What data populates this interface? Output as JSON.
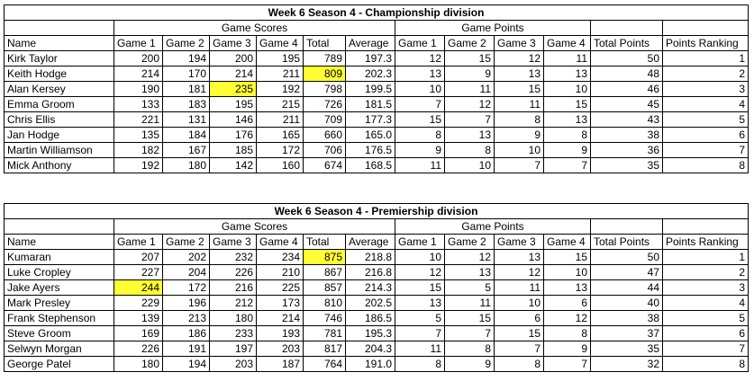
{
  "tables": [
    {
      "title": "Week 6 Season 4 - Championship division",
      "group_headers": {
        "game_scores": "Game Scores",
        "game_points": "Game Points"
      },
      "columns": [
        "Name",
        "Game 1",
        "Game 2",
        "Game 3",
        "Game 4",
        "Total",
        "Average",
        "Game 1",
        "Game 2",
        "Game 3",
        "Game 4",
        "Total Points",
        "Points Ranking"
      ],
      "rows": [
        [
          "Kirk Taylor",
          "200",
          "194",
          "200",
          "195",
          "789",
          "197.3",
          "12",
          "15",
          "12",
          "11",
          "50",
          "1"
        ],
        [
          "Keith Hodge",
          "214",
          "170",
          "214",
          "211",
          "809",
          "202.3",
          "13",
          "9",
          "13",
          "13",
          "48",
          "2"
        ],
        [
          "Alan Kersey",
          "190",
          "181",
          "235",
          "192",
          "798",
          "199.5",
          "10",
          "11",
          "15",
          "10",
          "46",
          "3"
        ],
        [
          "Emma Groom",
          "133",
          "183",
          "195",
          "215",
          "726",
          "181.5",
          "7",
          "12",
          "11",
          "15",
          "45",
          "4"
        ],
        [
          "Chris Ellis",
          "221",
          "131",
          "146",
          "211",
          "709",
          "177.3",
          "15",
          "7",
          "8",
          "13",
          "43",
          "5"
        ],
        [
          "Jan Hodge",
          "135",
          "184",
          "176",
          "165",
          "660",
          "165.0",
          "8",
          "13",
          "9",
          "8",
          "38",
          "6"
        ],
        [
          "Martin Williamson",
          "182",
          "167",
          "185",
          "172",
          "706",
          "176.5",
          "9",
          "8",
          "10",
          "9",
          "36",
          "7"
        ],
        [
          "Mick Anthony",
          "192",
          "180",
          "142",
          "160",
          "674",
          "168.5",
          "11",
          "10",
          "7",
          "7",
          "35",
          "8"
        ]
      ],
      "highlight_color": "#ffff33"
    },
    {
      "title": "Week 6 Season 4 - Premiership division",
      "group_headers": {
        "game_scores": "Game Scores",
        "game_points": "Game Points"
      },
      "columns": [
        "Name",
        "Game 1",
        "Game 2",
        "Game 3",
        "Game 4",
        "Total",
        "Average",
        "Game 1",
        "Game 2",
        "Game 3",
        "Game 4",
        "Total Points",
        "Points Ranking"
      ],
      "rows": [
        [
          "Kumaran",
          "207",
          "202",
          "232",
          "234",
          "875",
          "218.8",
          "10",
          "12",
          "13",
          "15",
          "50",
          "1"
        ],
        [
          "Luke Cropley",
          "227",
          "204",
          "226",
          "210",
          "867",
          "216.8",
          "12",
          "13",
          "12",
          "10",
          "47",
          "2"
        ],
        [
          "Jake Ayers",
          "244",
          "172",
          "216",
          "225",
          "857",
          "214.3",
          "15",
          "5",
          "11",
          "13",
          "44",
          "3"
        ],
        [
          "Mark Presley",
          "229",
          "196",
          "212",
          "173",
          "810",
          "202.5",
          "13",
          "11",
          "10",
          "6",
          "40",
          "4"
        ],
        [
          "Frank Stephenson",
          "139",
          "213",
          "180",
          "214",
          "746",
          "186.5",
          "5",
          "15",
          "6",
          "12",
          "38",
          "5"
        ],
        [
          "Steve Groom",
          "169",
          "186",
          "233",
          "193",
          "781",
          "195.3",
          "7",
          "7",
          "15",
          "8",
          "37",
          "6"
        ],
        [
          "Selwyn Morgan",
          "226",
          "191",
          "197",
          "203",
          "817",
          "204.3",
          "11",
          "8",
          "7",
          "9",
          "35",
          "7"
        ],
        [
          "George Patel",
          "180",
          "194",
          "203",
          "187",
          "764",
          "191.0",
          "8",
          "9",
          "8",
          "7",
          "32",
          "8"
        ]
      ],
      "highlight_color": "#ffff33"
    }
  ]
}
